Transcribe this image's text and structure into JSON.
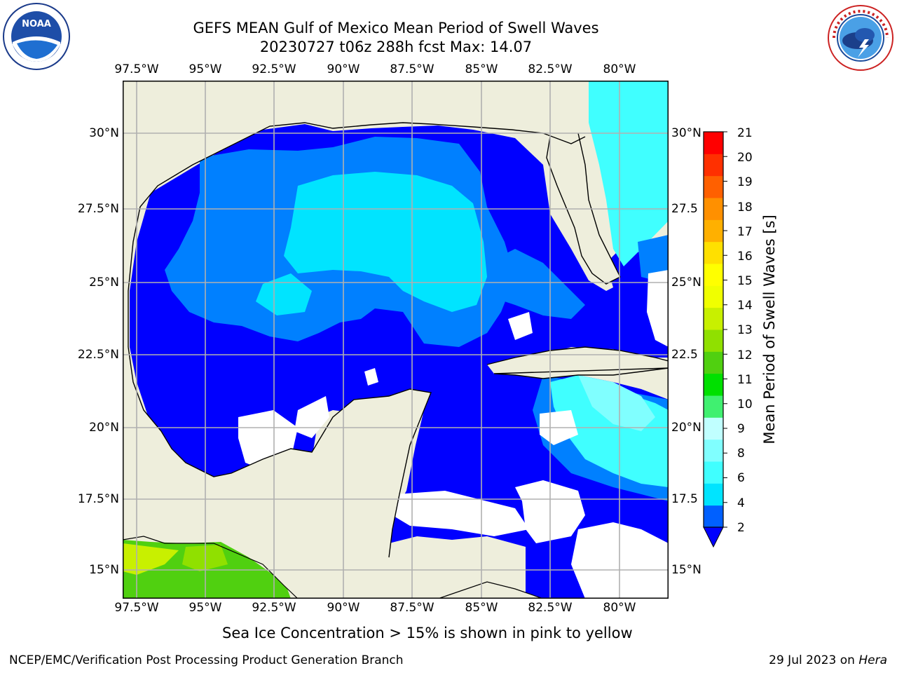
{
  "header": {
    "title_line1": "GEFS MEAN Gulf of Mexico Mean Period of Swell Waves",
    "title_line2": "20230727 t06z 288h fcst   Max: 14.07"
  },
  "logos": {
    "noaa": {
      "text": "NOAA",
      "ring_text": "NATIONAL OCEANIC AND ATMOSPHERIC ADMINISTRATION · U.S. DEPARTMENT OF COMMERCE"
    },
    "nws": {
      "ring_text": "NATIONAL WEATHER SERVICE"
    }
  },
  "map": {
    "lon_labels": [
      "97.5°W",
      "95°W",
      "92.5°W",
      "90°W",
      "87.5°W",
      "85°W",
      "82.5°W",
      "80°W"
    ],
    "lat_labels_left": [
      "30°N",
      "27.5°N",
      "25°N",
      "22.5°N",
      "20°N",
      "17.5°N",
      "15°N"
    ],
    "lat_labels_right": [
      "30°N",
      "27.5",
      "25°N",
      "22.5",
      "20°N",
      "17.5",
      "15°N"
    ],
    "land_color": "#eeeedc",
    "nodata_color": "#ffffff"
  },
  "colorbar": {
    "label": "Mean Period of Swell Waves [s]",
    "ticks": [
      "21",
      "20",
      "19",
      "18",
      "17",
      "16",
      "15",
      "14",
      "13",
      "12",
      "11",
      "10",
      "9",
      "8",
      "6",
      "4",
      "2"
    ],
    "colors_bottom_to_top": [
      "#0060ff",
      "#00e4ff",
      "#40ffff",
      "#80ffff",
      "#c0ffff",
      "#40f070",
      "#00e000",
      "#50d010",
      "#90e000",
      "#c8f000",
      "#f0ff00",
      "#ffff00",
      "#ffe000",
      "#ffb000",
      "#ff9000",
      "#ff6000",
      "#ff3000",
      "#ff0000"
    ],
    "extend_color": "#0000ff"
  },
  "notes": {
    "sea_ice": "Sea Ice Concentration > 15% is shown in pink to yellow"
  },
  "footer": {
    "left": "NCEP/EMC/Verification Post Processing Product Generation Branch",
    "date": "29 Jul 2023 on ",
    "machine": "Hera"
  }
}
